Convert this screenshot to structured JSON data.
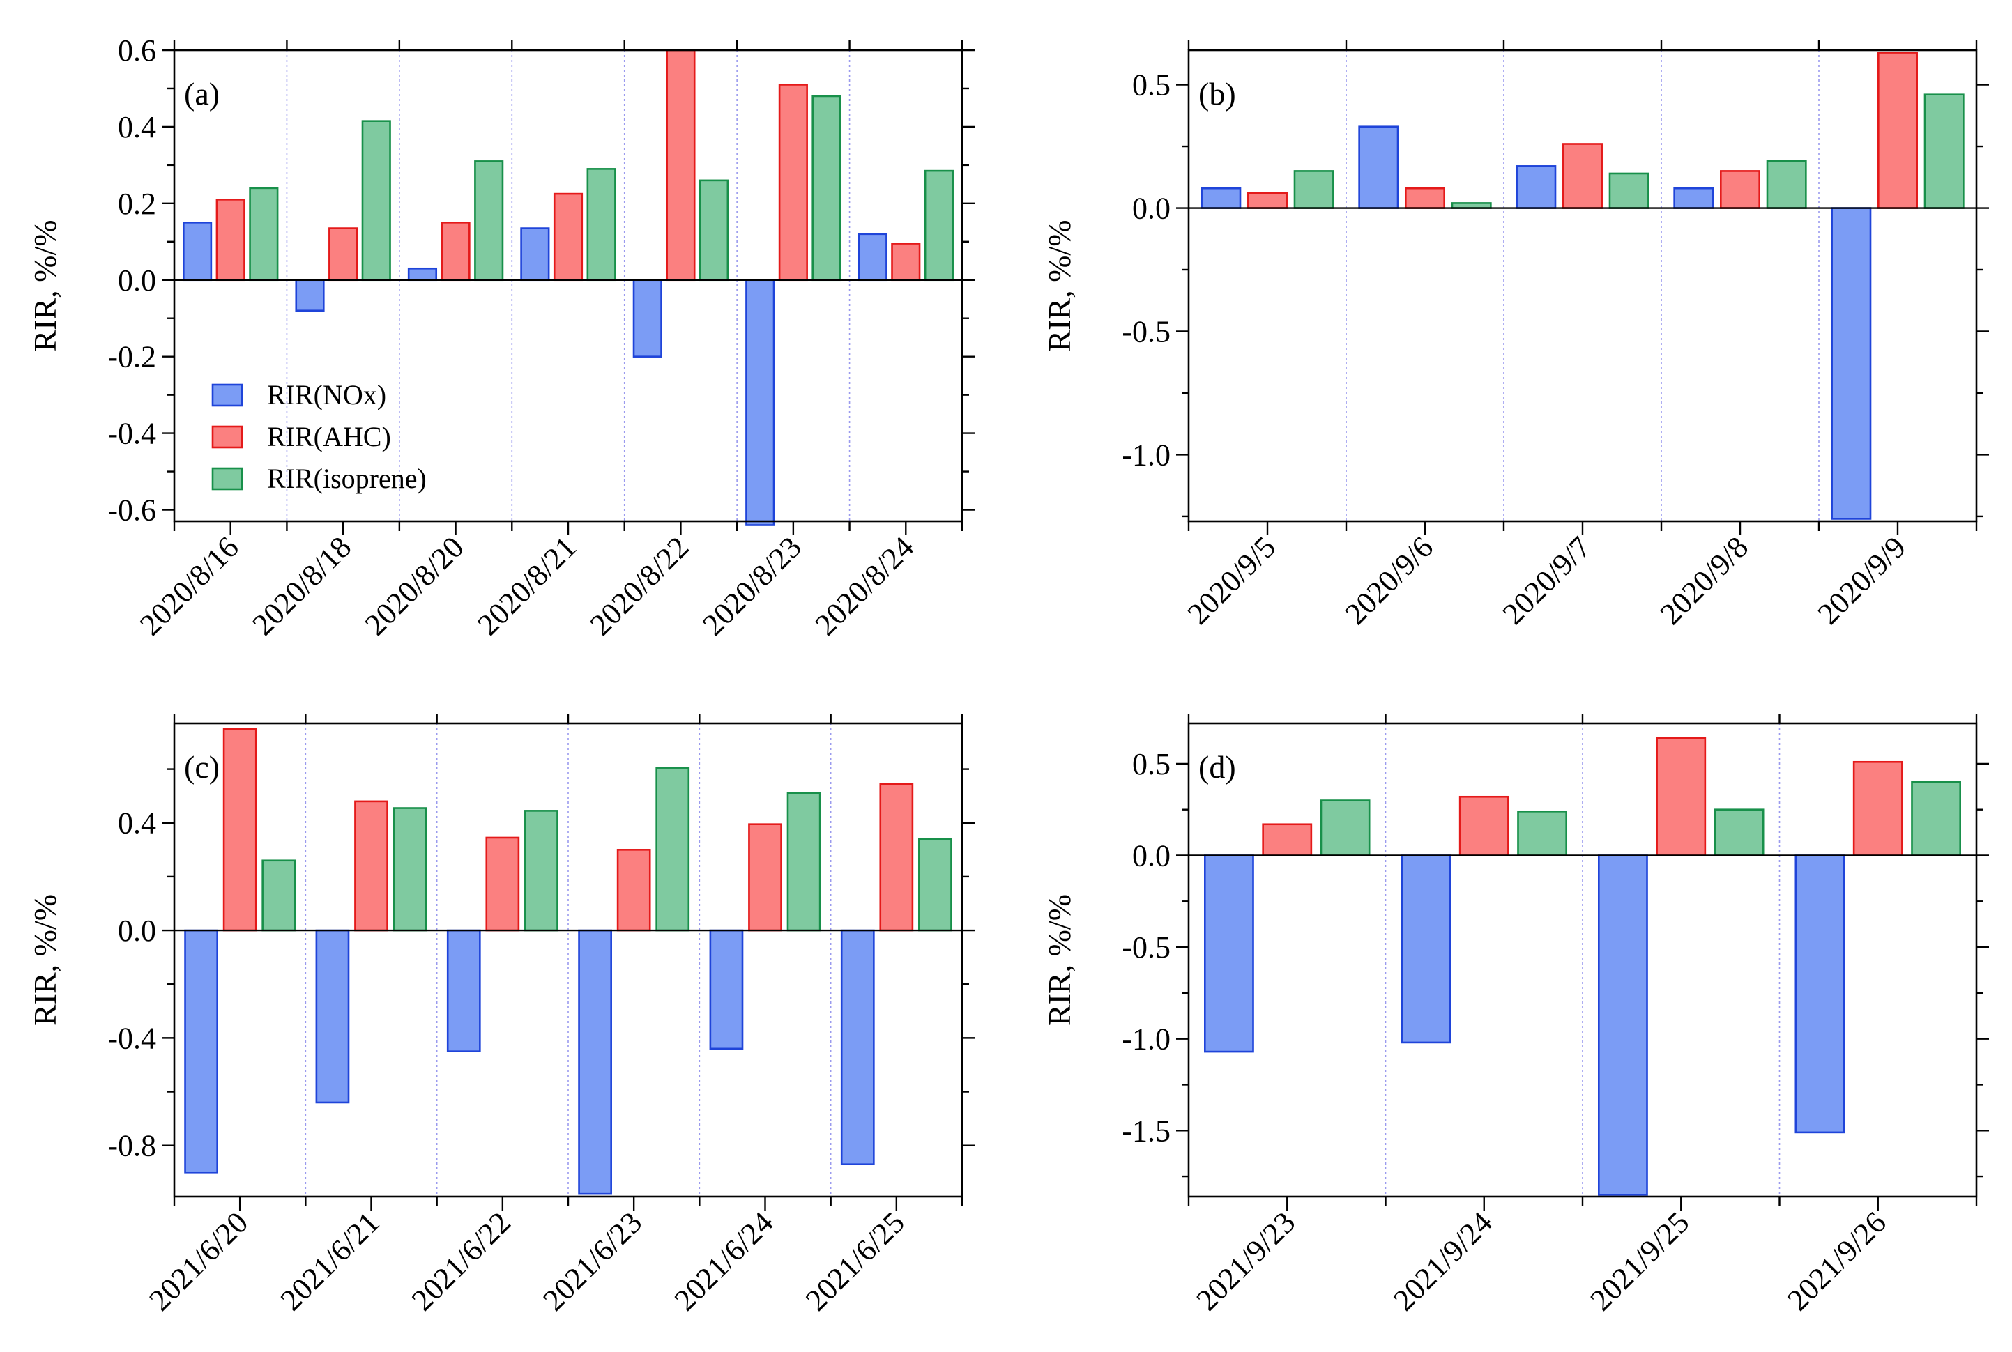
{
  "chart_data": [
    {
      "panel": "(a)",
      "type": "bar",
      "ylabel": "RIR, %/%",
      "ylim": [
        -0.63,
        0.6
      ],
      "yticks": [
        -0.6,
        -0.4,
        -0.2,
        0.0,
        0.2,
        0.4,
        0.6
      ],
      "ytick_labels": [
        "-0.6",
        "-0.4",
        "-0.2",
        "0.0",
        "0.2",
        "0.4",
        "0.6"
      ],
      "minor_step": 0.1,
      "categories": [
        "2020/8/16",
        "2020/8/18",
        "2020/8/20",
        "2020/8/21",
        "2020/8/22",
        "2020/8/23",
        "2020/8/24"
      ],
      "series": [
        {
          "name": "RIR(NOx)",
          "values": [
            0.15,
            -0.08,
            0.03,
            0.135,
            -0.2,
            -0.64,
            0.12
          ]
        },
        {
          "name": "RIR(AHC)",
          "values": [
            0.21,
            0.135,
            0.15,
            0.225,
            0.6,
            0.51,
            0.095
          ]
        },
        {
          "name": "RIR(isoprene)",
          "values": [
            0.24,
            0.415,
            0.31,
            0.29,
            0.26,
            0.48,
            0.285
          ]
        }
      ],
      "legend": [
        "RIR(NOx)",
        "RIR(AHC)",
        "RIR(isoprene)"
      ]
    },
    {
      "panel": "(b)",
      "type": "bar",
      "ylabel": "RIR, %/%",
      "ylim": [
        -1.27,
        0.64
      ],
      "yticks": [
        -1.0,
        -0.5,
        0.0,
        0.5
      ],
      "ytick_labels": [
        "-1.0",
        "-0.5",
        "0.0",
        "0.5"
      ],
      "minor_step": 0.25,
      "categories": [
        "2020/9/5",
        "2020/9/6",
        "2020/9/7",
        "2020/9/8",
        "2020/9/9"
      ],
      "series": [
        {
          "name": "RIR(NOx)",
          "values": [
            0.08,
            0.33,
            0.17,
            0.08,
            -1.26
          ]
        },
        {
          "name": "RIR(AHC)",
          "values": [
            0.06,
            0.08,
            0.26,
            0.15,
            0.63
          ]
        },
        {
          "name": "RIR(isoprene)",
          "values": [
            0.15,
            0.02,
            0.14,
            0.19,
            0.46
          ]
        }
      ]
    },
    {
      "panel": "(c)",
      "type": "bar",
      "ylabel": "RIR, %/%",
      "ylim": [
        -0.99,
        0.77
      ],
      "yticks": [
        -0.8,
        -0.4,
        0.0,
        0.4
      ],
      "ytick_labels": [
        "-0.8",
        "-0.4",
        "0.0",
        "0.4"
      ],
      "minor_step": 0.2,
      "categories": [
        "2021/6/20",
        "2021/6/21",
        "2021/6/22",
        "2021/6/23",
        "2021/6/24",
        "2021/6/25"
      ],
      "series": [
        {
          "name": "RIR(NOx)",
          "values": [
            -0.9,
            -0.64,
            -0.45,
            -0.98,
            -0.44,
            -0.87
          ]
        },
        {
          "name": "RIR(AHC)",
          "values": [
            0.75,
            0.48,
            0.345,
            0.3,
            0.395,
            0.545
          ]
        },
        {
          "name": "RIR(isoprene)",
          "values": [
            0.26,
            0.455,
            0.445,
            0.605,
            0.51,
            0.34
          ]
        }
      ]
    },
    {
      "panel": "(d)",
      "type": "bar",
      "ylabel": "RIR, %/%",
      "ylim": [
        -1.86,
        0.72
      ],
      "yticks": [
        -1.5,
        -1.0,
        -0.5,
        0.0,
        0.5
      ],
      "ytick_labels": [
        "-1.5",
        "-1.0",
        "-0.5",
        "0.0",
        "0.5"
      ],
      "minor_step": 0.25,
      "categories": [
        "2021/9/23",
        "2021/9/24",
        "2021/9/25",
        "2021/9/26"
      ],
      "series": [
        {
          "name": "RIR(NOx)",
          "values": [
            -1.07,
            -1.02,
            -1.85,
            -1.51
          ]
        },
        {
          "name": "RIR(AHC)",
          "values": [
            0.17,
            0.32,
            0.64,
            0.51
          ]
        },
        {
          "name": "RIR(isoprene)",
          "values": [
            0.3,
            0.24,
            0.25,
            0.4
          ]
        }
      ]
    }
  ],
  "colors": {
    "nox_fill": "#7b9cf5",
    "nox_stroke": "#1f44d9",
    "ahc_fill": "#fb8080",
    "ahc_stroke": "#e41a1a",
    "iso_fill": "#7fcaa0",
    "iso_stroke": "#18904a",
    "grid": "#9a9aee"
  }
}
